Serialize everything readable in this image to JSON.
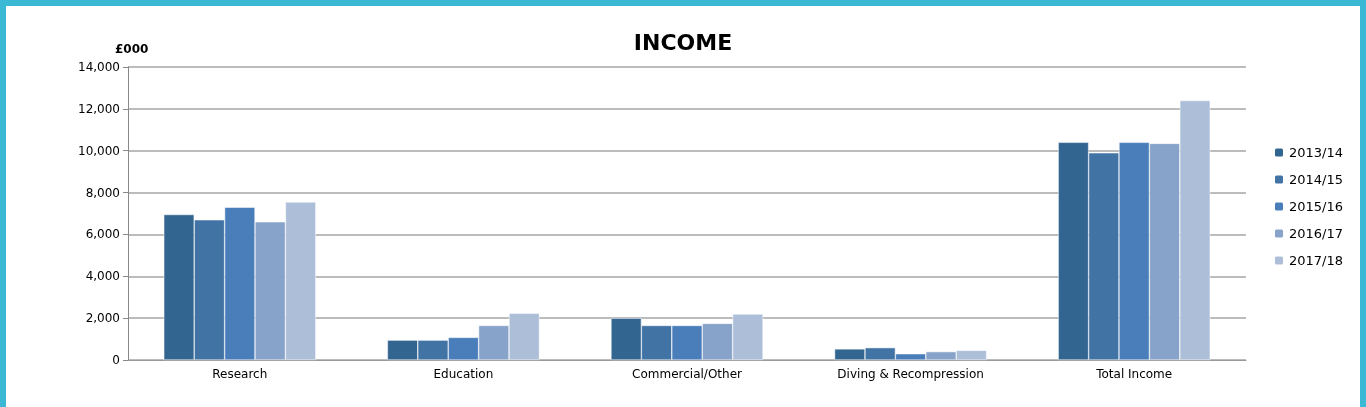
{
  "chart_data": {
    "type": "bar",
    "title": "INCOME",
    "ylabel": "£000",
    "categories": [
      "Research",
      "Education",
      "Commercial/Other",
      "Diving & Recompression",
      "Total Income"
    ],
    "series": [
      {
        "name": "2013/14",
        "color": "#336591",
        "values": [
          6950,
          950,
          2000,
          530,
          10400
        ]
      },
      {
        "name": "2014/15",
        "color": "#4273a5",
        "values": [
          6700,
          950,
          1650,
          590,
          9900
        ]
      },
      {
        "name": "2015/16",
        "color": "#4a7ebb",
        "values": [
          7300,
          1080,
          1650,
          300,
          10400
        ]
      },
      {
        "name": "2016/17",
        "color": "#87a3c9",
        "values": [
          6600,
          1650,
          1750,
          400,
          10350
        ]
      },
      {
        "name": "2017/18",
        "color": "#adbed9",
        "values": [
          7550,
          2230,
          2200,
          460,
          12400
        ]
      }
    ],
    "ylim": [
      0,
      14000
    ],
    "yticks": [
      0,
      {
        "value": 2000,
        "label": "2,000"
      },
      {
        "value": 4000,
        "label": "4,000"
      },
      {
        "value": 6000,
        "label": "6,000"
      },
      {
        "value": 8000,
        "label": "8,000"
      },
      {
        "value": 10000,
        "label": "10,000"
      },
      {
        "value": 12000,
        "label": "12,000"
      },
      {
        "value": 14000,
        "label": "14,000"
      }
    ],
    "grid": "y",
    "legend": "right"
  }
}
